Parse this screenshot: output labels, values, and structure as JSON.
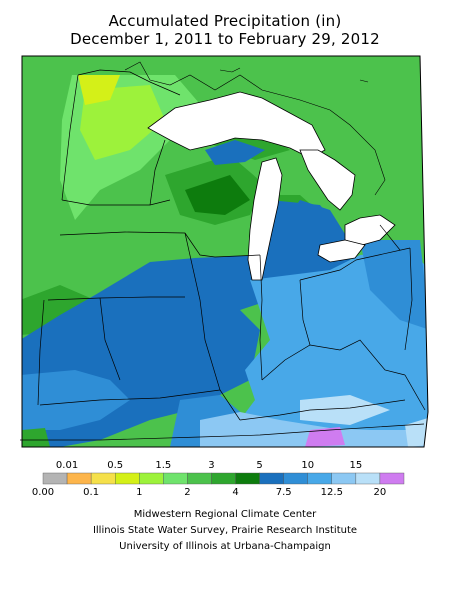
{
  "title_line1": "Accumulated Precipitation (in)",
  "title_line2": "December 1, 2011 to February 29, 2012",
  "legend": {
    "colors": [
      "#b4b4b4",
      "#fdb54b",
      "#f5e04a",
      "#d4f018",
      "#9df23b",
      "#6fe36c",
      "#4cc24c",
      "#2ea62e",
      "#0d7c0d",
      "#1a70bd",
      "#2f8ed6",
      "#48a8e8",
      "#8cc8f3",
      "#b9e0f8",
      "#cf7cf0"
    ],
    "top_labels": [
      "0.01",
      "0.5",
      "1.5",
      "3",
      "5",
      "10",
      "15"
    ],
    "bottom_labels": [
      "0.00",
      "0.1",
      "1",
      "2",
      "4",
      "7.5",
      "12.5",
      "20"
    ]
  },
  "credits": {
    "line1": "Midwestern Regional Climate Center",
    "line2": "Illinois State Water Survey, Prairie Research Institute",
    "line3": "University of Illinois at Urbana-Champaign"
  }
}
